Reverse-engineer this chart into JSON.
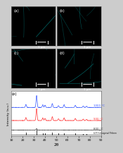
{
  "panels": [
    "(a)",
    "(b)",
    "(c)",
    "(d)"
  ],
  "scale_bar_label": "1 μm",
  "xrd_panel_label": "(e)",
  "xrd_xlabel": "2θ",
  "xrd_ylabel": "Intensity (a.u.)",
  "xrd_xlim": [
    10,
    90
  ],
  "xrd_xticks": [
    10,
    20,
    30,
    40,
    50,
    60,
    70,
    80,
    90
  ],
  "line_labels": [
    "1000 °C",
    "900 °C",
    "800 °C"
  ],
  "line_colors": [
    "#3355ff",
    "#ff3333",
    "#333333"
  ],
  "line_offsets": [
    2.2,
    1.1,
    0.3
  ],
  "ref_label": "LLTO tetragonal Pm̅mm",
  "ref_color": "#111111",
  "background_color": "#000000",
  "fiber_color_r": 0,
  "fiber_color_g": 180,
  "fiber_color_b": 180,
  "xrd_bg": "#ffffff",
  "fig_bg": "#cccccc",
  "peak_positions_1000": [
    23,
    32.5,
    38,
    40,
    46.5,
    52,
    57,
    67,
    74,
    77
  ],
  "peak_heights_1000": [
    0.25,
    1.0,
    0.22,
    0.18,
    0.32,
    0.15,
    0.22,
    0.18,
    0.12,
    0.1
  ],
  "peak_positions_900": [
    23,
    32.5,
    38,
    40,
    46.5,
    52,
    57,
    67,
    74,
    77
  ],
  "peak_heights_900": [
    0.25,
    1.0,
    0.22,
    0.18,
    0.32,
    0.15,
    0.22,
    0.18,
    0.12,
    0.1
  ],
  "peak_positions_800": [
    32.5
  ],
  "peak_heights_800": [
    0.12
  ],
  "ref_peak_positions": [
    23,
    32.5,
    38,
    40,
    46.5,
    52,
    57,
    67,
    74,
    77
  ],
  "ref_peak_heights": [
    0.35,
    1.0,
    0.28,
    0.22,
    0.38,
    0.18,
    0.28,
    0.2,
    0.15,
    0.12
  ]
}
